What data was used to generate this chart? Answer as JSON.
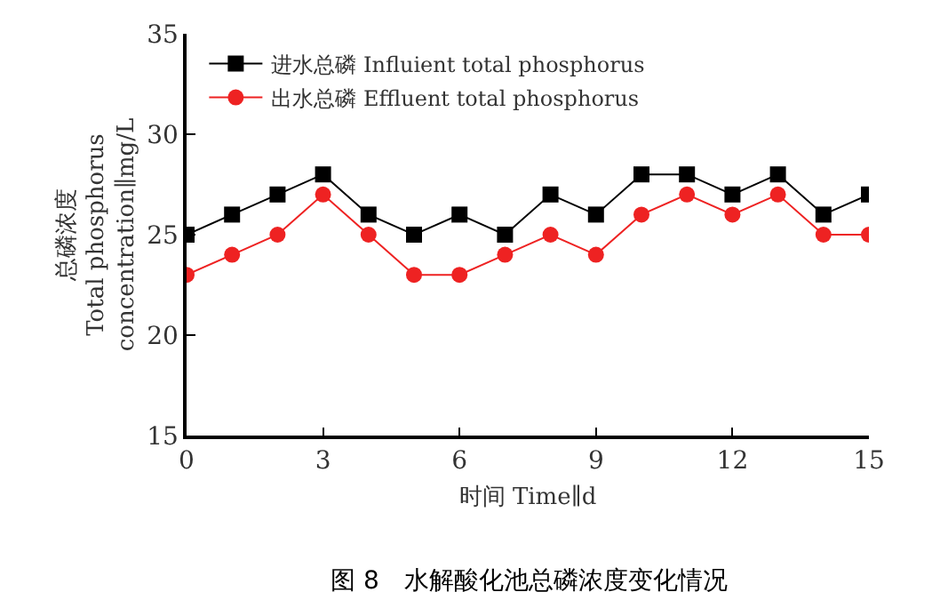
{
  "chart_data": {
    "type": "line",
    "xlabel": "时间 Time∥d",
    "ylabel": "总磷浓度\nTotal phosphorus\nconcentration∥mg/L",
    "x": [
      0,
      1,
      2,
      3,
      4,
      5,
      6,
      7,
      8,
      9,
      10,
      11,
      12,
      13,
      14,
      15
    ],
    "series": [
      {
        "name": "进水总磷 Influient total phosphorus",
        "color": "#000000",
        "marker": "square",
        "values": [
          25,
          26,
          27,
          28,
          26,
          25,
          26,
          25,
          27,
          26,
          28,
          28,
          27,
          28,
          26,
          27
        ]
      },
      {
        "name": "出水总磷 Effluent total phosphorus",
        "color": "#ee2222",
        "marker": "circle",
        "values": [
          23,
          24,
          25,
          27,
          25,
          23,
          23,
          24,
          25,
          24,
          26,
          27,
          26,
          27,
          25,
          25
        ]
      }
    ],
    "xlim": [
      0,
      15
    ],
    "xticks": [
      0,
      3,
      6,
      9,
      12,
      15
    ],
    "ylim": [
      15,
      35
    ],
    "yticks": [
      15,
      20,
      25,
      30,
      35
    ],
    "legend": "top left",
    "line_style": "solid",
    "annotations": [
      "图 8　水解酸化池总磷浓度变化情况"
    ]
  }
}
